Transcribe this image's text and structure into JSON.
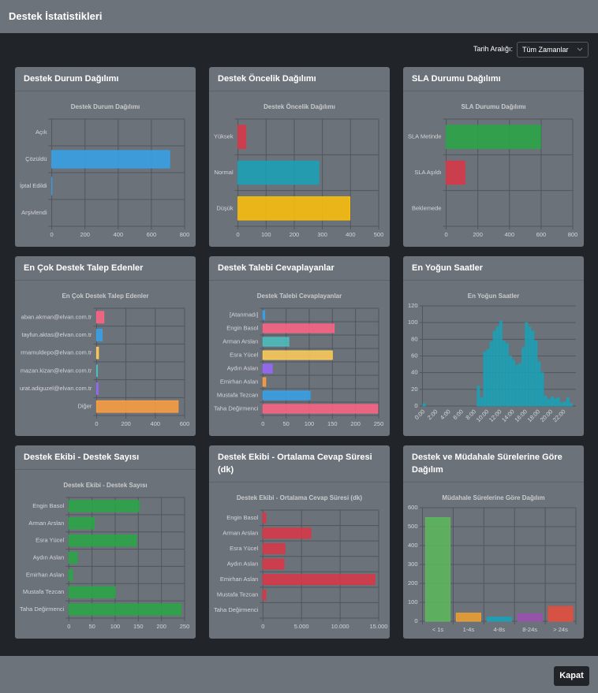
{
  "header": {
    "title": "Destek İstatistikleri"
  },
  "filter": {
    "label": "Tarih Aralığı:",
    "value": "Tüm Zamanlar"
  },
  "footer": {
    "button": "Kapat"
  },
  "chart_data": [
    {
      "type": "barh",
      "card_title": "Destek Durum Dağılımı",
      "title": "Destek Durum Dağılımı",
      "categories": [
        "Açık",
        "Çözüldü",
        "İptal Edildi",
        "Arşivlendi"
      ],
      "values": [
        0,
        710,
        1,
        0
      ],
      "color": "#36a2eb",
      "xlim": [
        0,
        800
      ],
      "xticks": [
        0,
        200,
        400,
        600,
        800
      ]
    },
    {
      "type": "barh",
      "card_title": "Destek Öncelik Dağılımı",
      "title": "Destek Öncelik Dağılımı",
      "categories": [
        "Yüksek",
        "Normal",
        "Düşük"
      ],
      "values": [
        28,
        287,
        398
      ],
      "colors": [
        "#dc3545",
        "#17a2b8",
        "#ffc107"
      ],
      "xlim": [
        0,
        500
      ],
      "xticks": [
        0,
        100,
        200,
        300,
        400,
        500
      ]
    },
    {
      "type": "barh",
      "card_title": "SLA Durumu Dağılımı",
      "title": "SLA Durumu Dağılımı",
      "categories": [
        "SLA Metinde",
        "SLA Aşıldı",
        "Beklemede"
      ],
      "values": [
        597,
        118,
        0
      ],
      "colors": [
        "#28a745",
        "#dc3545",
        "#ffc107"
      ],
      "xlim": [
        0,
        800
      ],
      "xticks": [
        0,
        200,
        400,
        600,
        800
      ]
    },
    {
      "type": "barh",
      "card_title": "En Çok Destek Talep Edenler",
      "title": "En Çok Destek Talep Edenler",
      "categories": [
        "aban.akman@elvan.com.tr",
        "tayfun.aktas@elvan.com.tr",
        "rmamuldepo@elvan.com.tr",
        "mazan.kizan@elvan.com.tr",
        "urat.adiguzel@elvan.com.tr",
        "Diğer"
      ],
      "values": [
        50,
        38,
        13,
        6,
        10,
        556
      ],
      "colors": [
        "#ff6384",
        "#36a2eb",
        "#ffce56",
        "#4bc0c0",
        "#9966ff",
        "#ff9f40"
      ],
      "xlim": [
        0,
        600
      ],
      "xticks": [
        0,
        200,
        400,
        600
      ]
    },
    {
      "type": "barh",
      "card_title": "Destek Talebi Cevaplayanlar",
      "title": "Destek Talebi Cevaplayanlar",
      "categories": [
        "[Atanmadı]",
        "Engin Basol",
        "Arman Arslan",
        "Esra Yücel",
        "Aydın Aslan",
        "Emirhan Aslan",
        "Mustafa Tezcan",
        "Taha Değirmenci"
      ],
      "values": [
        4,
        154,
        56,
        150,
        20,
        6,
        102,
        248
      ],
      "colors": [
        "#36a2eb",
        "#ff6384",
        "#4bc0c0",
        "#ffce56",
        "#9966ff",
        "#ff9f40",
        "#36a2eb",
        "#ff6384"
      ],
      "xlim": [
        0,
        250
      ],
      "xticks": [
        0,
        50,
        100,
        150,
        200,
        250
      ]
    },
    {
      "type": "bar",
      "card_title": "En Yoğun Saatler",
      "title": "En Yoğun Saatler",
      "categories": [
        "0:00",
        null,
        null,
        null,
        "2:00",
        null,
        null,
        null,
        "4:00",
        null,
        null,
        null,
        "6:00",
        null,
        null,
        null,
        "8:00",
        null,
        null,
        null,
        "10:00",
        null,
        null,
        null,
        "12:00",
        null,
        null,
        null,
        "14:00",
        null,
        null,
        null,
        "16:00",
        null,
        null,
        null,
        "18:00",
        null,
        null,
        null,
        "20:00",
        null,
        null,
        null,
        "22:00",
        null,
        null,
        null
      ],
      "values": [
        3,
        0,
        0,
        0,
        0,
        0,
        0,
        0,
        0,
        0,
        0,
        0,
        0,
        0,
        0,
        0,
        0,
        24,
        10,
        65,
        68,
        77,
        90,
        95,
        102,
        78,
        75,
        60,
        55,
        49,
        51,
        70,
        100,
        95,
        90,
        78,
        53,
        40,
        12,
        8,
        11,
        9,
        10,
        4,
        5,
        10,
        3,
        0
      ],
      "color": "#17a2b8",
      "ylim": [
        0,
        120
      ],
      "yticks": [
        0,
        20,
        40,
        60,
        80,
        100,
        120
      ]
    },
    {
      "type": "barh",
      "card_title": "Destek Ekibi - Destek Sayısı",
      "title": "Destek Ekibi - Destek Sayısı",
      "categories": [
        "Engin Basol",
        "Arman Arslan",
        "Esra Yücel",
        "Aydın Aslan",
        "Emirhan Aslan",
        "Mustafa Tezcan",
        "Taha Değirmenci"
      ],
      "values": [
        152,
        55,
        146,
        18,
        8,
        100,
        242
      ],
      "color": "#28a745",
      "xlim": [
        0,
        250
      ],
      "xticks": [
        0,
        50,
        100,
        150,
        200,
        250
      ]
    },
    {
      "type": "barh",
      "card_title": "Destek Ekibi - Ortalama Cevap Süresi (dk)",
      "title": "Destek Ekibi - Ortalama Cevap Süresi (dk)",
      "categories": [
        "Engin Basol",
        "Arman Arslan",
        "Esra Yücel",
        "Aydın Aslan",
        "Emirhan Aslan",
        "Mustafa Tezcan",
        "Taha Değirmenci"
      ],
      "values": [
        370,
        6200,
        2850,
        2730,
        14500,
        370,
        0
      ],
      "color": "#dc3545",
      "xlim": [
        0,
        15000
      ],
      "xticks": [
        0,
        {
          "value": 5000,
          "label": "5.000"
        },
        {
          "value": 10000,
          "label": "10.000"
        },
        {
          "value": 15000,
          "label": "15.000"
        }
      ]
    },
    {
      "type": "bar",
      "card_title": "Destek ve Müdahale Sürelerine Göre Dağılım",
      "title": "Müdahale Sürelerine Göre Dağılım",
      "categories": [
        "< 1s",
        "1-4s",
        "4-8s",
        "8-24s",
        "> 24s"
      ],
      "values": [
        548,
        43,
        22,
        39,
        78
      ],
      "colors": [
        "#5cb85c",
        "#f0a030",
        "#17a2b8",
        "#9b4fb0",
        "#e74c3c"
      ],
      "ylim": [
        0,
        600
      ],
      "yticks": [
        0,
        100,
        200,
        300,
        400,
        500,
        600
      ]
    }
  ]
}
